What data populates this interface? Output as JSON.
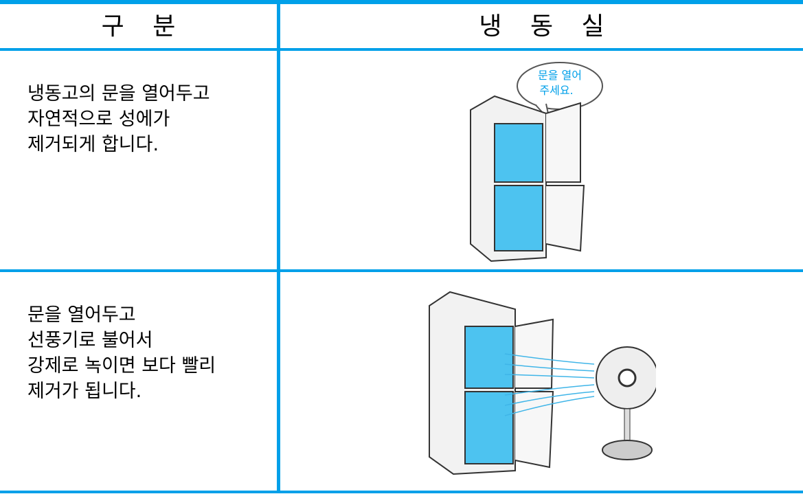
{
  "table": {
    "header": [
      "구 분",
      "냉 동 실"
    ],
    "rows": [
      {
        "text": [
          "냉동고의 문을 열어두고",
          "자연적으로 성에가",
          "제거되게 합니다."
        ],
        "speech": [
          "문을 열어",
          "주세요."
        ]
      },
      {
        "text": [
          "문을 열어두고",
          "선풍기로 불어서",
          "강제로 녹이면 보다 빨리",
          "제거가 됩니다."
        ]
      }
    ]
  }
}
